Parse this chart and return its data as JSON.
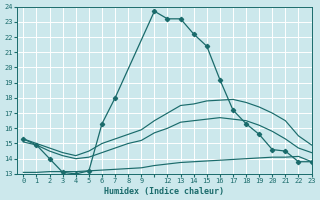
{
  "xlabel": "Humidex (Indice chaleur)",
  "bg_color": "#cce8ec",
  "line_color": "#1a6b6b",
  "grid_color": "#ffffff",
  "xlabels": [
    "0",
    "1",
    "2",
    "3",
    "4",
    "5",
    "6",
    "7",
    "8",
    "9",
    "",
    "12",
    "13",
    "14",
    "15",
    "16",
    "17",
    "18",
    "19",
    "20",
    "21",
    "22",
    "23"
  ],
  "n_points": 23,
  "main_x": [
    0,
    1,
    2,
    3,
    4,
    5,
    6,
    7,
    10,
    11,
    12,
    13,
    14,
    15,
    16,
    17,
    18,
    19,
    20,
    21,
    22
  ],
  "main_y": [
    15.3,
    14.9,
    14.0,
    13.1,
    13.0,
    13.2,
    16.3,
    18.0,
    23.7,
    23.2,
    23.2,
    22.2,
    21.4,
    19.2,
    17.2,
    16.3,
    15.6,
    14.6,
    14.5,
    13.8,
    13.8
  ],
  "line2_x": [
    0,
    1,
    2,
    3,
    4,
    5,
    6,
    7,
    8,
    9,
    10,
    11,
    12,
    13,
    14,
    15,
    16,
    17,
    18,
    19,
    20,
    21,
    22
  ],
  "line2_y": [
    15.3,
    15.0,
    14.7,
    14.4,
    14.2,
    14.5,
    15.0,
    15.3,
    15.6,
    15.9,
    16.5,
    17.0,
    17.5,
    17.6,
    17.8,
    17.85,
    17.9,
    17.7,
    17.4,
    17.0,
    16.5,
    15.5,
    14.9
  ],
  "line3_x": [
    0,
    1,
    2,
    3,
    4,
    5,
    6,
    7,
    8,
    9,
    10,
    11,
    12,
    13,
    14,
    15,
    16,
    17,
    18,
    19,
    20,
    21,
    22
  ],
  "line3_y": [
    15.1,
    14.9,
    14.5,
    14.2,
    14.0,
    14.1,
    14.4,
    14.7,
    15.0,
    15.2,
    15.7,
    16.0,
    16.4,
    16.5,
    16.6,
    16.7,
    16.6,
    16.5,
    16.2,
    15.8,
    15.3,
    14.7,
    14.4
  ],
  "line4_x": [
    0,
    1,
    2,
    3,
    4,
    5,
    6,
    7,
    8,
    9,
    10,
    11,
    12,
    13,
    14,
    15,
    16,
    17,
    18,
    19,
    20,
    21,
    22
  ],
  "line4_y": [
    13.1,
    13.1,
    13.15,
    13.15,
    13.15,
    13.2,
    13.25,
    13.3,
    13.35,
    13.4,
    13.55,
    13.65,
    13.75,
    13.8,
    13.85,
    13.9,
    13.95,
    14.0,
    14.05,
    14.1,
    14.1,
    14.15,
    13.8
  ],
  "ylim": [
    13.0,
    24.0
  ],
  "yticks": [
    13,
    14,
    15,
    16,
    17,
    18,
    19,
    20,
    21,
    22,
    23,
    24
  ]
}
